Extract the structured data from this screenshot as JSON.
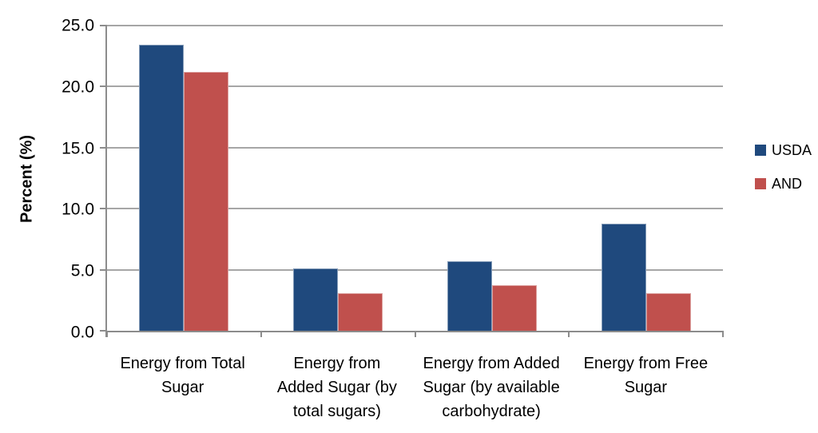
{
  "page": {
    "background": "#ffffff"
  },
  "chart_data": {
    "type": "bar",
    "title": "",
    "xlabel": "",
    "ylabel": "Percent (%)",
    "ylim": [
      0,
      25
    ],
    "ytick_step": 5,
    "ytick_decimals": 1,
    "grid": true,
    "legend_position": "right",
    "categories": [
      "Energy from Total Sugar",
      "Energy from Added Sugar (by total sugars)",
      "Energy from Added Sugar (by available carbohydrate)",
      "Energy from Free Sugar"
    ],
    "category_lines": [
      [
        "Energy from Total",
        "Sugar"
      ],
      [
        "Energy from",
        "Added Sugar (by",
        "total sugars)"
      ],
      [
        "Energy from Added",
        "Sugar (by available",
        "carbohydrate)"
      ],
      [
        "Energy from Free",
        "Sugar"
      ]
    ],
    "series": [
      {
        "name": "USDA",
        "color": "#1F497D",
        "values": [
          23.4,
          5.1,
          5.7,
          8.8
        ]
      },
      {
        "name": "AND",
        "color": "#C0504D",
        "values": [
          21.2,
          3.1,
          3.7,
          3.1
        ]
      }
    ],
    "colors": {
      "axis": "#8c8c8c",
      "gridline": "#a6a6a6",
      "text": "#000000"
    }
  }
}
